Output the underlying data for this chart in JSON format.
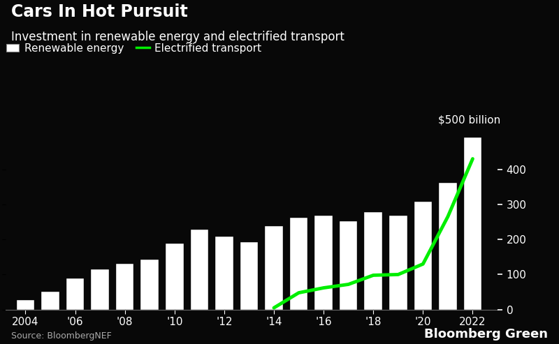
{
  "title": "Cars In Hot Pursuit",
  "subtitle": "Investment in renewable energy and electrified transport",
  "source": "Source: BloombergNEF",
  "branding": "Bloomberg Green",
  "background_color": "#080808",
  "text_color": "#ffffff",
  "bar_color": "#ffffff",
  "line_color": "#00ee00",
  "years": [
    2004,
    2005,
    2006,
    2007,
    2008,
    2009,
    2010,
    2011,
    2012,
    2013,
    2014,
    2015,
    2016,
    2017,
    2018,
    2019,
    2020,
    2021,
    2022
  ],
  "bar_values": [
    28,
    52,
    88,
    115,
    130,
    142,
    188,
    228,
    208,
    192,
    238,
    262,
    268,
    252,
    278,
    268,
    308,
    362,
    490
  ],
  "line_years": [
    2014,
    2015,
    2016,
    2017,
    2018,
    2019,
    2020,
    2021,
    2022
  ],
  "line_values": [
    5,
    48,
    62,
    72,
    98,
    100,
    130,
    265,
    430
  ],
  "ylim": [
    0,
    510
  ],
  "yticks": [
    0,
    100,
    200,
    300,
    400
  ],
  "ylabel_annotation": "$500 billion",
  "xtick_labels": [
    "2004",
    "'06",
    "'08",
    "'10",
    "'12",
    "'14",
    "'16",
    "'18",
    "'20",
    "2022"
  ],
  "xtick_positions": [
    2004,
    2006,
    2008,
    2010,
    2012,
    2014,
    2016,
    2018,
    2020,
    2022
  ],
  "legend_bar_label": "Renewable energy",
  "legend_line_label": "Electrified transport",
  "title_fontsize": 17,
  "subtitle_fontsize": 12,
  "axis_fontsize": 11,
  "source_fontsize": 9,
  "branding_fontsize": 13
}
